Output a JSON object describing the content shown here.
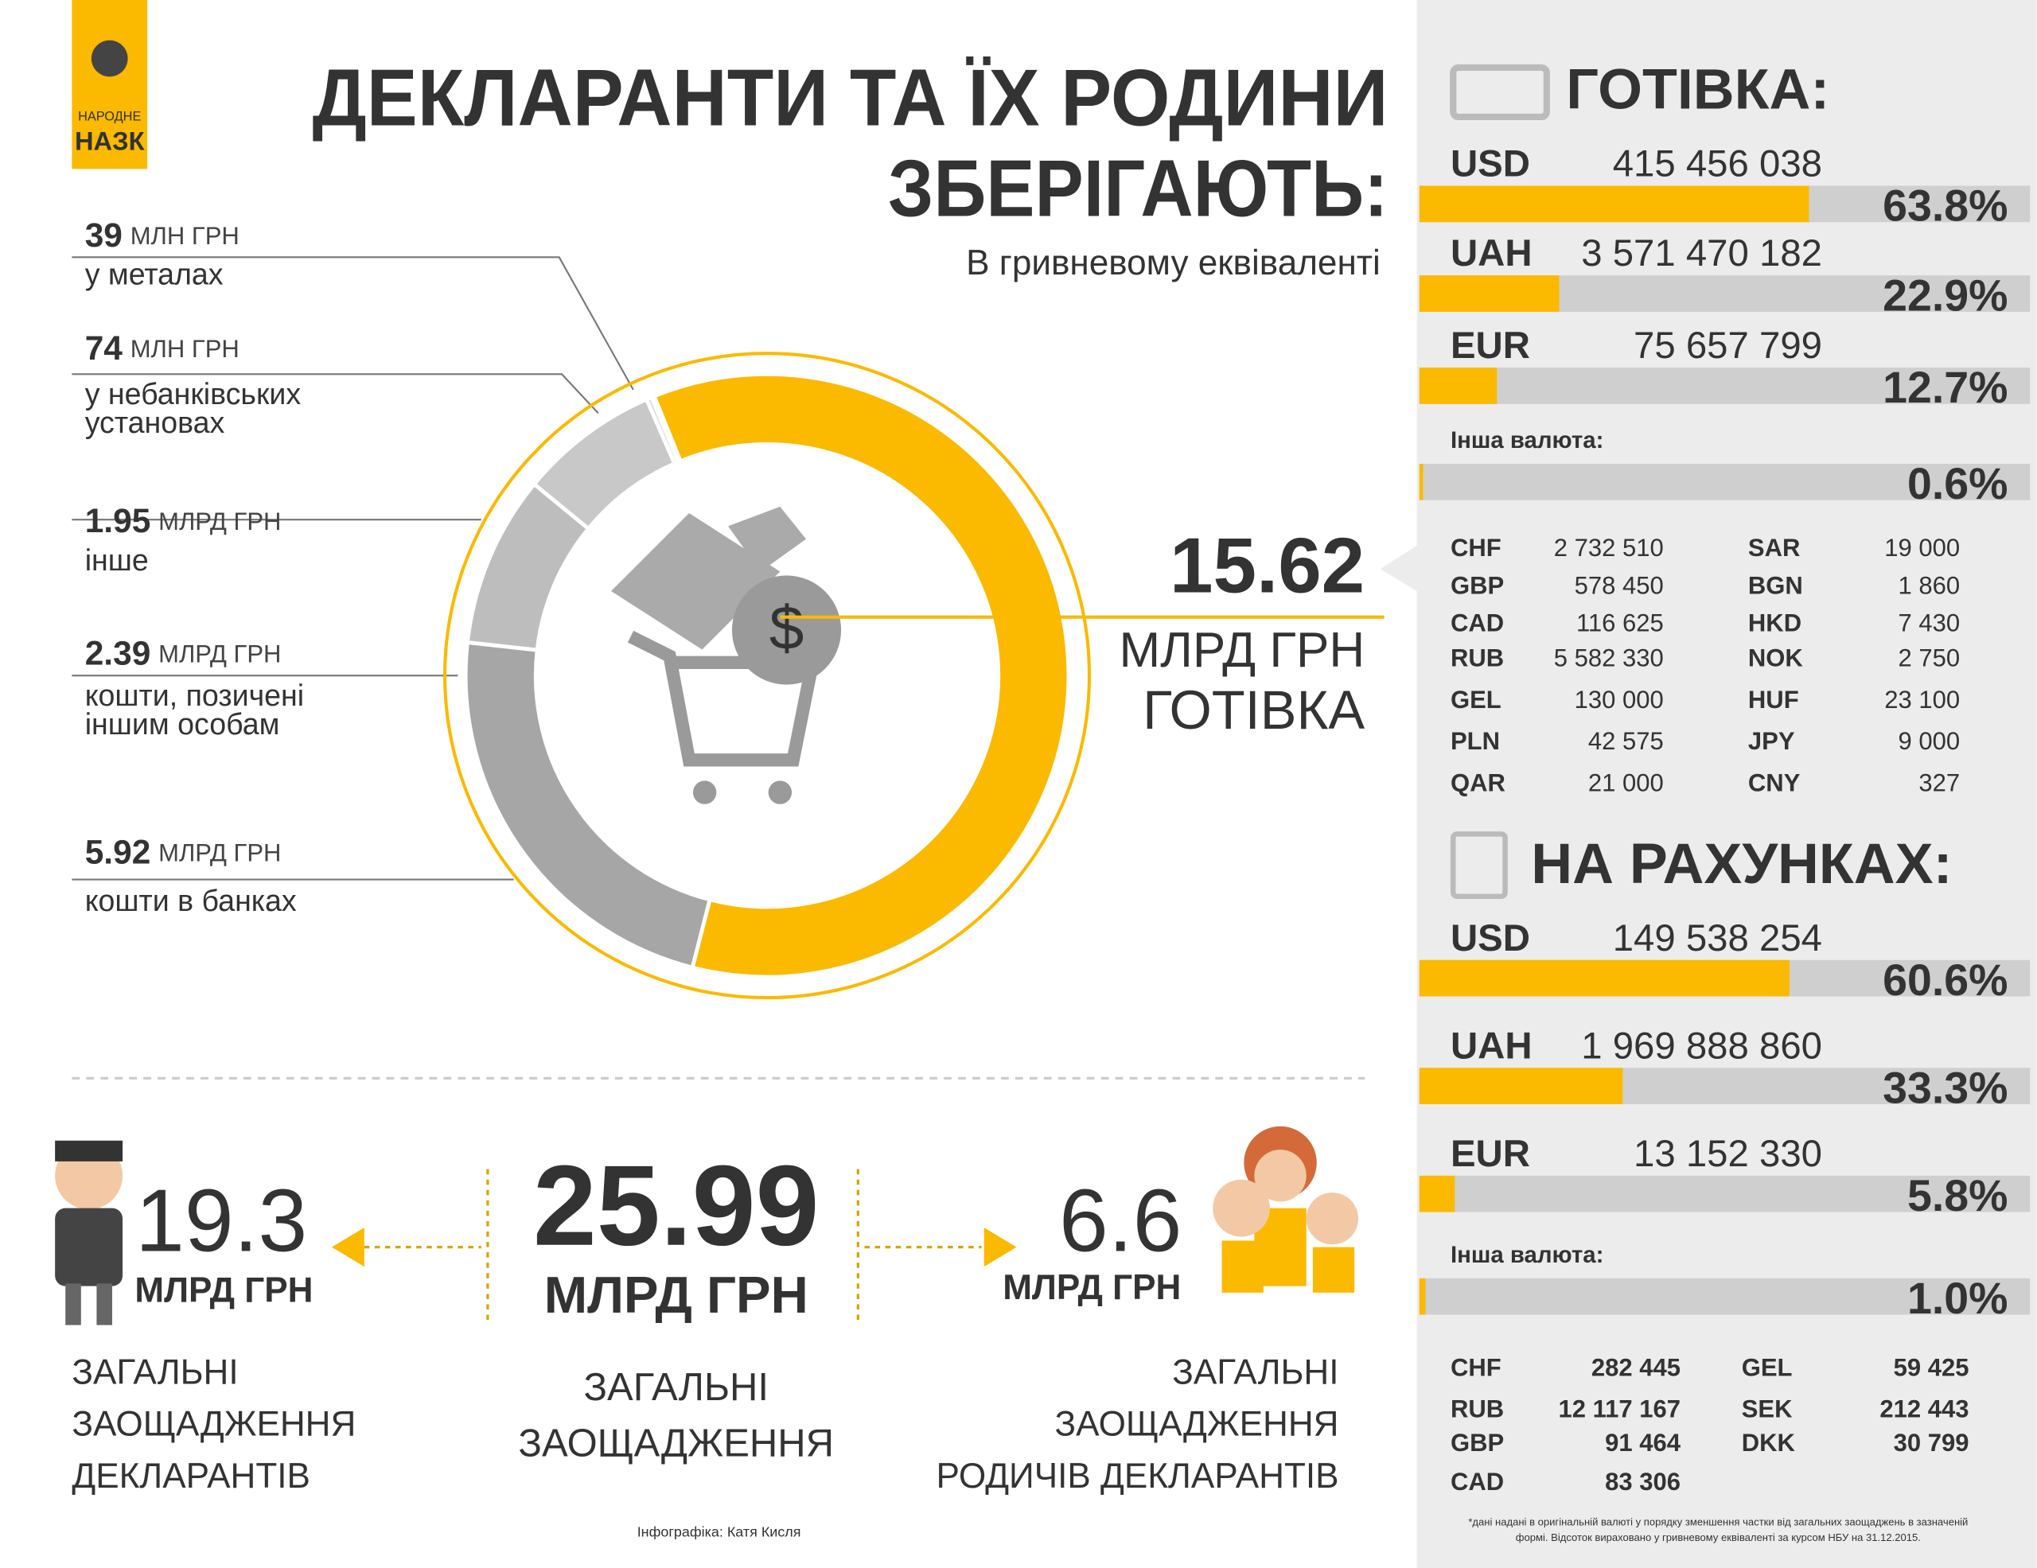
{
  "logo": {
    "line1": "НАРОДНЕ",
    "line2": "НАЗК"
  },
  "title": [
    "ДЕКЛАРАНТИ ТА ЇХ РОДИНИ",
    "ЗБЕРІГАЮТЬ:"
  ],
  "subtitle": "В гривневому еквіваленті",
  "breakdown": [
    {
      "amount": 39,
      "unit": "МЛН ГРН",
      "description": [
        "у металах"
      ]
    },
    {
      "amount": 74,
      "unit": "МЛН ГРН",
      "description": [
        "у небанківських",
        "установах"
      ]
    },
    {
      "amount": 1.95,
      "unit": "МЛРД ГРН",
      "description": [
        "інше"
      ]
    },
    {
      "amount": 2.39,
      "unit": "МЛРД ГРН",
      "description": [
        "кошти, позичені",
        "іншим особам"
      ]
    },
    {
      "amount": 5.92,
      "unit": "МЛРД ГРН",
      "description": [
        "кошти в банках"
      ]
    }
  ],
  "cash_total": {
    "amount": 15.62,
    "unit": "МЛРД ГРН",
    "label": "ГОТІВКА"
  },
  "cash": {
    "title": "ГОТІВКА:",
    "rows": [
      {
        "currency": "USD",
        "amount": "415 456 038",
        "share": 63.8,
        "share_label": "63.8%"
      },
      {
        "currency": "UAH",
        "amount": "3 571 470 182",
        "share": 22.9,
        "share_label": "22.9%"
      },
      {
        "currency": "EUR",
        "amount": "75 657 799",
        "share": 12.7,
        "share_label": "12.7%"
      }
    ],
    "other": {
      "label": "Інша валюта:",
      "share": 0.6,
      "share_label": "0.6%"
    },
    "table_left": [
      [
        "CHF",
        "2 732 510"
      ],
      [
        "GBP",
        "578 450"
      ],
      [
        "CAD",
        "116 625"
      ],
      [
        "RUB",
        "5 582 330"
      ],
      [
        "GEL",
        "130 000"
      ],
      [
        "PLN",
        "42 575"
      ],
      [
        "QAR",
        "21 000"
      ]
    ],
    "table_right": [
      [
        "SAR",
        "19 000"
      ],
      [
        "BGN",
        "1 860"
      ],
      [
        "HKD",
        "7 430"
      ],
      [
        "NOK",
        "2 750"
      ],
      [
        "HUF",
        "23 100"
      ],
      [
        "JPY",
        "9 000"
      ],
      [
        "CNY",
        "327"
      ]
    ]
  },
  "accounts": {
    "title": "НА РАХУНКАХ:",
    "rows": [
      {
        "currency": "USD",
        "amount": "149 538 254",
        "share": 60.6,
        "share_label": "60.6%"
      },
      {
        "currency": "UAH",
        "amount": "1 969 888 860",
        "share": 33.3,
        "share_label": "33.3%"
      },
      {
        "currency": "EUR",
        "amount": "13 152 330",
        "share": 5.8,
        "share_label": "5.8%"
      }
    ],
    "other": {
      "label": "Інша валюта:",
      "share": 1.0,
      "share_label": "1.0%"
    },
    "table_left": [
      [
        "CHF",
        "282 445"
      ],
      [
        "RUB",
        "12 117 167"
      ],
      [
        "GBP",
        "91 464"
      ],
      [
        "CAD",
        "83 306"
      ]
    ],
    "table_right": [
      [
        "GEL",
        "59 425"
      ],
      [
        "SEK",
        "212 443"
      ],
      [
        "DKK",
        "30 799"
      ]
    ]
  },
  "totals": {
    "declarants": {
      "amount": "19.3",
      "unit": "МЛРД ГРН",
      "label": [
        "ЗАГАЛЬНІ",
        "ЗАОЩАДЖЕННЯ",
        "ДЕКЛАРАНТІВ"
      ]
    },
    "all": {
      "amount": "25.99",
      "unit": "МЛРД ГРН",
      "label": [
        "ЗАГАЛЬНІ",
        "ЗАОЩАДЖЕННЯ"
      ]
    },
    "relatives": {
      "amount": "6.6",
      "unit": "МЛРД ГРН",
      "label": [
        "ЗАГАЛЬНІ",
        "ЗАОЩАДЖЕННЯ",
        "РОДИЧІВ ДЕКЛАРАНТІВ"
      ]
    }
  },
  "credits": "Інфографіка: Катя Кисля",
  "footnote": [
    "*дані надані в оригінальній валюті у порядку зменшення частки від загальних заощаджень в зазначеній",
    "формі. Відсоток вираховано у гривневому еквіваленті за курсом НБУ на 31.12.2015."
  ]
}
